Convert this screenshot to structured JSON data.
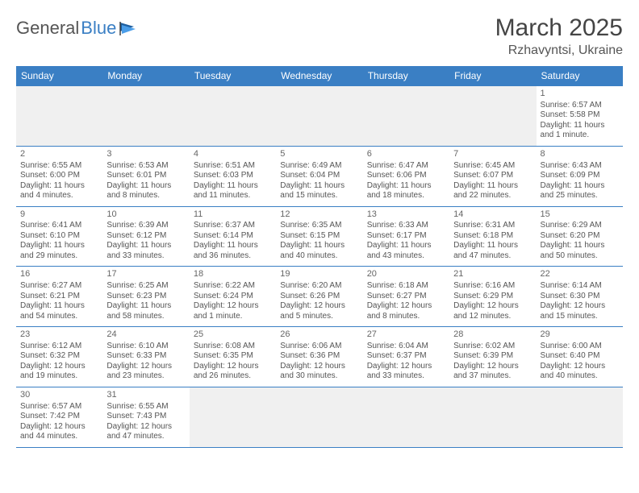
{
  "logo": {
    "text1": "General",
    "text2": "Blue"
  },
  "title": "March 2025",
  "location": "Rzhavyntsi, Ukraine",
  "colors": {
    "header_bg": "#3a7fc4",
    "header_text": "#ffffff",
    "border": "#3a7fc4",
    "empty_bg": "#f0f0f0",
    "body_text": "#555555",
    "title_text": "#444444"
  },
  "day_headers": [
    "Sunday",
    "Monday",
    "Tuesday",
    "Wednesday",
    "Thursday",
    "Friday",
    "Saturday"
  ],
  "weeks": [
    [
      null,
      null,
      null,
      null,
      null,
      null,
      {
        "d": "1",
        "sr": "6:57 AM",
        "ss": "5:58 PM",
        "dl": "11 hours and 1 minute."
      }
    ],
    [
      {
        "d": "2",
        "sr": "6:55 AM",
        "ss": "6:00 PM",
        "dl": "11 hours and 4 minutes."
      },
      {
        "d": "3",
        "sr": "6:53 AM",
        "ss": "6:01 PM",
        "dl": "11 hours and 8 minutes."
      },
      {
        "d": "4",
        "sr": "6:51 AM",
        "ss": "6:03 PM",
        "dl": "11 hours and 11 minutes."
      },
      {
        "d": "5",
        "sr": "6:49 AM",
        "ss": "6:04 PM",
        "dl": "11 hours and 15 minutes."
      },
      {
        "d": "6",
        "sr": "6:47 AM",
        "ss": "6:06 PM",
        "dl": "11 hours and 18 minutes."
      },
      {
        "d": "7",
        "sr": "6:45 AM",
        "ss": "6:07 PM",
        "dl": "11 hours and 22 minutes."
      },
      {
        "d": "8",
        "sr": "6:43 AM",
        "ss": "6:09 PM",
        "dl": "11 hours and 25 minutes."
      }
    ],
    [
      {
        "d": "9",
        "sr": "6:41 AM",
        "ss": "6:10 PM",
        "dl": "11 hours and 29 minutes."
      },
      {
        "d": "10",
        "sr": "6:39 AM",
        "ss": "6:12 PM",
        "dl": "11 hours and 33 minutes."
      },
      {
        "d": "11",
        "sr": "6:37 AM",
        "ss": "6:14 PM",
        "dl": "11 hours and 36 minutes."
      },
      {
        "d": "12",
        "sr": "6:35 AM",
        "ss": "6:15 PM",
        "dl": "11 hours and 40 minutes."
      },
      {
        "d": "13",
        "sr": "6:33 AM",
        "ss": "6:17 PM",
        "dl": "11 hours and 43 minutes."
      },
      {
        "d": "14",
        "sr": "6:31 AM",
        "ss": "6:18 PM",
        "dl": "11 hours and 47 minutes."
      },
      {
        "d": "15",
        "sr": "6:29 AM",
        "ss": "6:20 PM",
        "dl": "11 hours and 50 minutes."
      }
    ],
    [
      {
        "d": "16",
        "sr": "6:27 AM",
        "ss": "6:21 PM",
        "dl": "11 hours and 54 minutes."
      },
      {
        "d": "17",
        "sr": "6:25 AM",
        "ss": "6:23 PM",
        "dl": "11 hours and 58 minutes."
      },
      {
        "d": "18",
        "sr": "6:22 AM",
        "ss": "6:24 PM",
        "dl": "12 hours and 1 minute."
      },
      {
        "d": "19",
        "sr": "6:20 AM",
        "ss": "6:26 PM",
        "dl": "12 hours and 5 minutes."
      },
      {
        "d": "20",
        "sr": "6:18 AM",
        "ss": "6:27 PM",
        "dl": "12 hours and 8 minutes."
      },
      {
        "d": "21",
        "sr": "6:16 AM",
        "ss": "6:29 PM",
        "dl": "12 hours and 12 minutes."
      },
      {
        "d": "22",
        "sr": "6:14 AM",
        "ss": "6:30 PM",
        "dl": "12 hours and 15 minutes."
      }
    ],
    [
      {
        "d": "23",
        "sr": "6:12 AM",
        "ss": "6:32 PM",
        "dl": "12 hours and 19 minutes."
      },
      {
        "d": "24",
        "sr": "6:10 AM",
        "ss": "6:33 PM",
        "dl": "12 hours and 23 minutes."
      },
      {
        "d": "25",
        "sr": "6:08 AM",
        "ss": "6:35 PM",
        "dl": "12 hours and 26 minutes."
      },
      {
        "d": "26",
        "sr": "6:06 AM",
        "ss": "6:36 PM",
        "dl": "12 hours and 30 minutes."
      },
      {
        "d": "27",
        "sr": "6:04 AM",
        "ss": "6:37 PM",
        "dl": "12 hours and 33 minutes."
      },
      {
        "d": "28",
        "sr": "6:02 AM",
        "ss": "6:39 PM",
        "dl": "12 hours and 37 minutes."
      },
      {
        "d": "29",
        "sr": "6:00 AM",
        "ss": "6:40 PM",
        "dl": "12 hours and 40 minutes."
      }
    ],
    [
      {
        "d": "30",
        "sr": "6:57 AM",
        "ss": "7:42 PM",
        "dl": "12 hours and 44 minutes."
      },
      {
        "d": "31",
        "sr": "6:55 AM",
        "ss": "7:43 PM",
        "dl": "12 hours and 47 minutes."
      },
      null,
      null,
      null,
      null,
      null
    ]
  ],
  "labels": {
    "sunrise": "Sunrise:",
    "sunset": "Sunset:",
    "daylight": "Daylight:"
  }
}
